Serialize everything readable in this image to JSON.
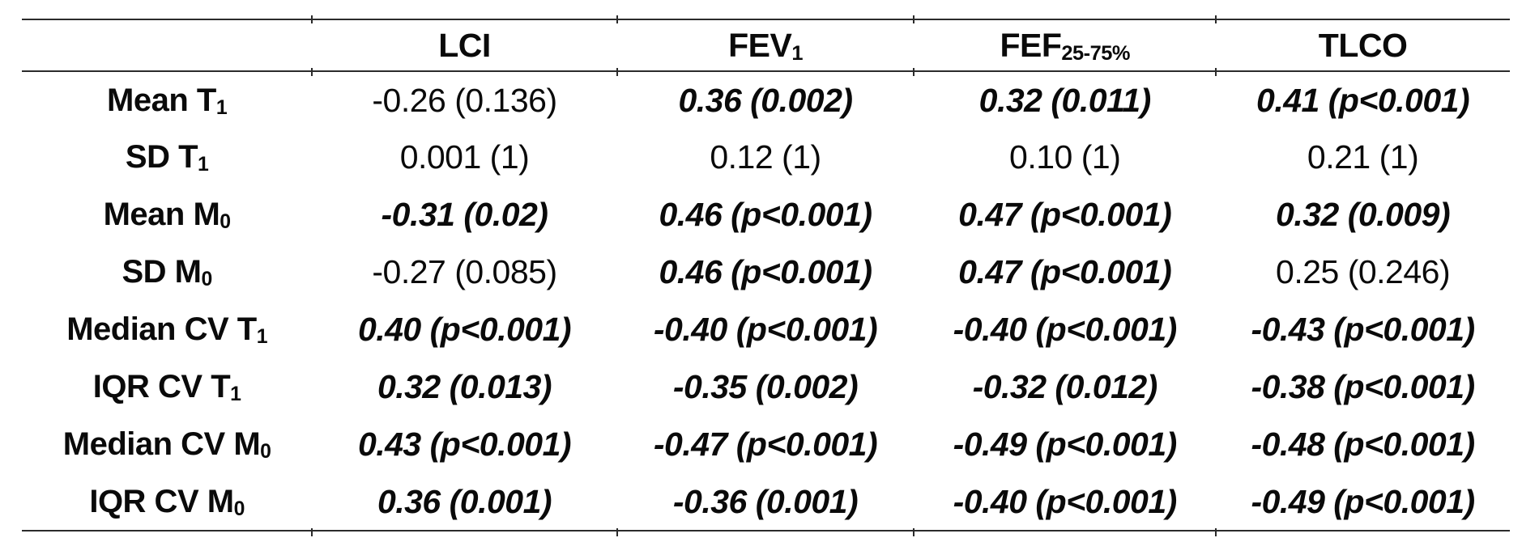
{
  "page": {
    "background_color": "#ffffff",
    "text_color": "#0a0a0a",
    "rule_color": "#2b2b2b"
  },
  "table": {
    "description": "correlation-table",
    "header": {
      "corner": "",
      "cols": [
        {
          "base": "LCI",
          "sub": ""
        },
        {
          "base": "FEV",
          "sub": "1"
        },
        {
          "base": "FEF",
          "sub": "25-75%"
        },
        {
          "base": "TLCO",
          "sub": ""
        }
      ]
    },
    "rows": [
      {
        "label": {
          "base": "Mean T",
          "sub": "1"
        },
        "cells": [
          {
            "text": "-0.26 (0.136)",
            "significant": false
          },
          {
            "text": "0.36 (0.002)",
            "significant": true
          },
          {
            "text": "0.32 (0.011)",
            "significant": true
          },
          {
            "text": "0.41 (p<0.001)",
            "significant": true
          }
        ]
      },
      {
        "label": {
          "base": "SD T",
          "sub": "1"
        },
        "cells": [
          {
            "text": "0.001 (1)",
            "significant": false
          },
          {
            "text": "0.12 (1)",
            "significant": false
          },
          {
            "text": "0.10 (1)",
            "significant": false
          },
          {
            "text": "0.21 (1)",
            "significant": false
          }
        ]
      },
      {
        "label": {
          "base": "Mean M",
          "sub": "0"
        },
        "cells": [
          {
            "text": "-0.31 (0.02)",
            "significant": true
          },
          {
            "text": "0.46 (p<0.001)",
            "significant": true
          },
          {
            "text": "0.47 (p<0.001)",
            "significant": true
          },
          {
            "text": "0.32 (0.009)",
            "significant": true
          }
        ]
      },
      {
        "label": {
          "base": "SD M",
          "sub": "0"
        },
        "cells": [
          {
            "text": "-0.27 (0.085)",
            "significant": false
          },
          {
            "text": "0.46 (p<0.001)",
            "significant": true
          },
          {
            "text": "0.47 (p<0.001)",
            "significant": true
          },
          {
            "text": "0.25 (0.246)",
            "significant": false
          }
        ]
      },
      {
        "label": {
          "base": "Median CV T",
          "sub": "1"
        },
        "cells": [
          {
            "text": "0.40 (p<0.001)",
            "significant": true
          },
          {
            "text": "-0.40 (p<0.001)",
            "significant": true
          },
          {
            "text": "-0.40 (p<0.001)",
            "significant": true
          },
          {
            "text": "-0.43 (p<0.001)",
            "significant": true
          }
        ]
      },
      {
        "label": {
          "base": "IQR CV T",
          "sub": "1"
        },
        "cells": [
          {
            "text": "0.32 (0.013)",
            "significant": true
          },
          {
            "text": "-0.35 (0.002)",
            "significant": true
          },
          {
            "text": "-0.32 (0.012)",
            "significant": true
          },
          {
            "text": "-0.38 (p<0.001)",
            "significant": true
          }
        ]
      },
      {
        "label": {
          "base": "Median CV M",
          "sub": "0"
        },
        "cells": [
          {
            "text": "0.43 (p<0.001)",
            "significant": true
          },
          {
            "text": "-0.47 (p<0.001)",
            "significant": true
          },
          {
            "text": "-0.49 (p<0.001)",
            "significant": true
          },
          {
            "text": "-0.48 (p<0.001)",
            "significant": true
          }
        ]
      },
      {
        "label": {
          "base": "IQR CV M",
          "sub": "0"
        },
        "cells": [
          {
            "text": "0.36 (0.001)",
            "significant": true
          },
          {
            "text": "-0.36 (0.001)",
            "significant": true
          },
          {
            "text": "-0.40 (p<0.001)",
            "significant": true
          },
          {
            "text": "-0.49 (p<0.001)",
            "significant": true
          }
        ]
      }
    ]
  }
}
